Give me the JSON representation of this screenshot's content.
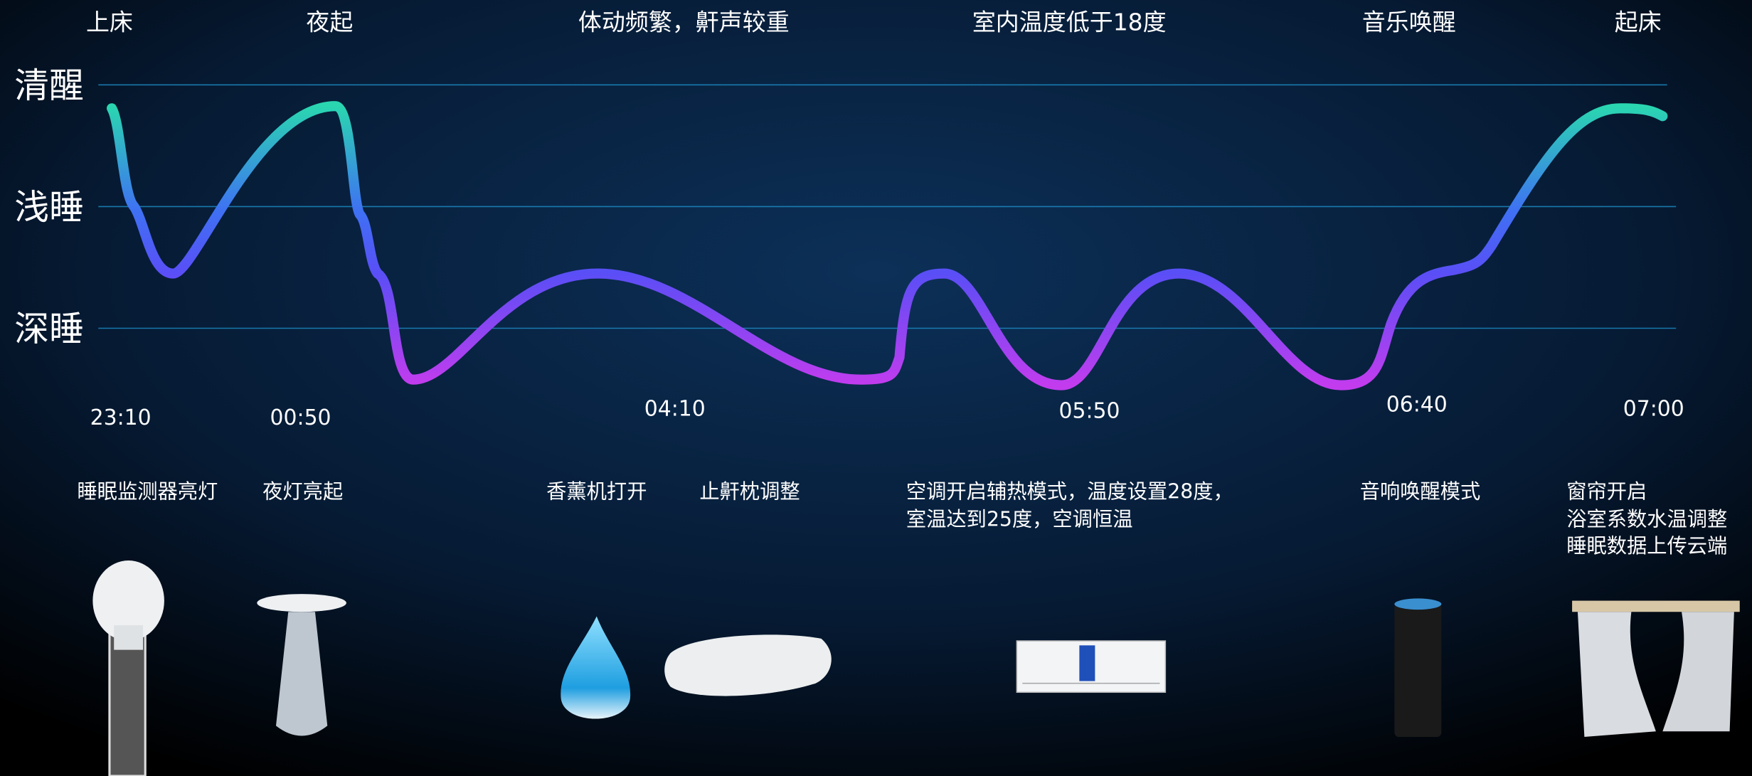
{
  "events": [
    "上床",
    "夜起",
    "体动频繁，鼾声较重",
    "室内温度低于18度",
    "音乐唤醒",
    "起床"
  ],
  "levels": [
    "清醒",
    "浅睡",
    "深睡"
  ],
  "times": [
    "23:10",
    "00:50",
    "04:10",
    "05:50",
    "06:40",
    "07:00"
  ],
  "actions": [
    {
      "lines": [
        "睡眠监测器亮灯"
      ]
    },
    {
      "lines": [
        "夜灯亮起"
      ]
    },
    {
      "lines": [
        "香薰机打开"
      ]
    },
    {
      "lines": [
        "止鼾枕调整"
      ]
    },
    {
      "lines": [
        "空调开启辅热模式，温度设置28度，",
        "室温达到25度，空调恒温"
      ]
    },
    {
      "lines": [
        "音响唤醒模式"
      ]
    },
    {
      "lines": [
        "窗帘开启",
        "浴室系数水温调整",
        "睡眠数据上传云端"
      ]
    }
  ]
}
